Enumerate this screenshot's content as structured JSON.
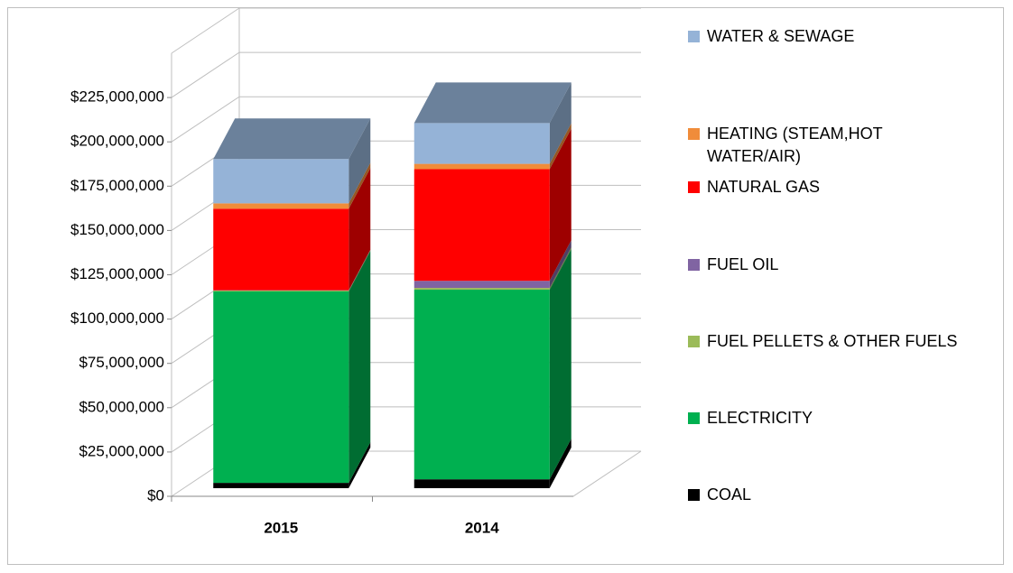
{
  "chart_data": {
    "type": "bar3d_stacked",
    "categories": [
      "2015",
      "2014"
    ],
    "series": [
      {
        "name": "COAL",
        "color": "#000000",
        "values": [
          3000000,
          5000000
        ]
      },
      {
        "name": "ELECTRICITY",
        "color": "#00b050",
        "values": [
          108000000,
          107000000
        ]
      },
      {
        "name": "FUEL PELLETS & OTHER FUELS",
        "color": "#9bbb59",
        "values": [
          500000,
          1000000
        ]
      },
      {
        "name": "FUEL OIL",
        "color": "#8064a2",
        "values": [
          200000,
          4000000
        ]
      },
      {
        "name": "NATURAL GAS",
        "color": "#ff0000",
        "values": [
          46000000,
          63000000
        ]
      },
      {
        "name": "HEATING (STEAM,HOT WATER/AIR)",
        "color": "#f08c3a",
        "values": [
          3000000,
          3000000
        ]
      },
      {
        "name": "WATER & SEWAGE",
        "color": "#95b3d7",
        "values": [
          25000000,
          23000000
        ]
      }
    ],
    "ylim": [
      0,
      250000000
    ],
    "yticks": [
      {
        "value": 0,
        "label": "$0"
      },
      {
        "value": 25000000,
        "label": "$25,000,000"
      },
      {
        "value": 50000000,
        "label": "$50,000,000"
      },
      {
        "value": 75000000,
        "label": "$75,000,000"
      },
      {
        "value": 100000000,
        "label": "$100,000,000"
      },
      {
        "value": 125000000,
        "label": "$125,000,000"
      },
      {
        "value": 150000000,
        "label": "$150,000,000"
      },
      {
        "value": 175000000,
        "label": "$175,000,000"
      },
      {
        "value": 200000000,
        "label": "$200,000,000"
      },
      {
        "value": 225000000,
        "label": "$225,000,000"
      }
    ],
    "grid": true,
    "legend": "right"
  }
}
